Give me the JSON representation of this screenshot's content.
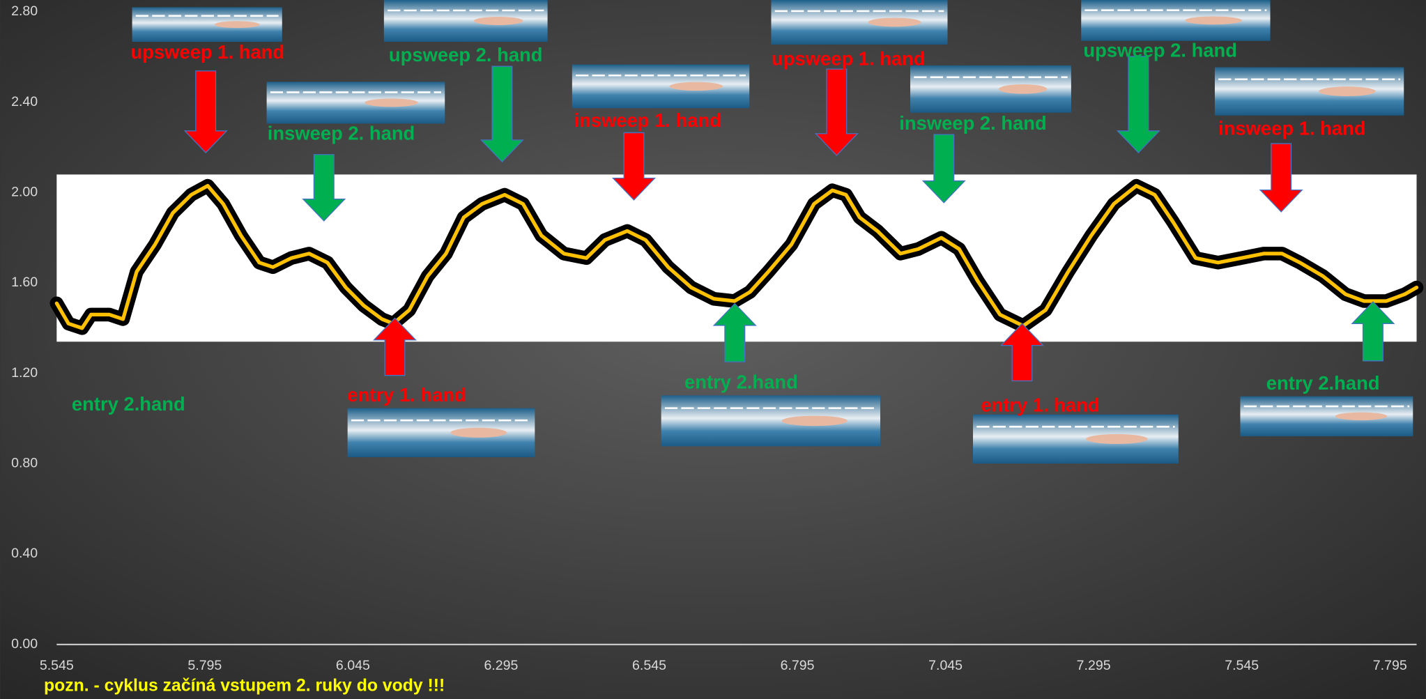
{
  "chart_data": {
    "type": "line",
    "x": [
      5.545,
      5.565,
      5.588,
      5.603,
      5.634,
      5.657,
      5.68,
      5.711,
      5.741,
      5.772,
      5.8,
      5.826,
      5.856,
      5.887,
      5.91,
      5.941,
      5.971,
      6.002,
      6.033,
      6.063,
      6.094,
      6.113,
      6.14,
      6.171,
      6.202,
      6.232,
      6.263,
      6.301,
      6.332,
      6.363,
      6.401,
      6.439,
      6.47,
      6.508,
      6.539,
      6.577,
      6.616,
      6.654,
      6.689,
      6.715,
      6.746,
      6.785,
      6.823,
      6.854,
      6.877,
      6.9,
      6.93,
      6.969,
      6.999,
      7.038,
      7.068,
      7.099,
      7.137,
      7.176,
      7.214,
      7.252,
      7.291,
      7.329,
      7.367,
      7.398,
      7.429,
      7.467,
      7.505,
      7.544,
      7.582,
      7.613,
      7.643,
      7.682,
      7.72,
      7.751,
      7.789,
      7.82,
      7.84
    ],
    "series": [
      {
        "color": "#ffc000",
        "outline_color": "#000000",
        "values": [
          1.51,
          1.42,
          1.4,
          1.46,
          1.46,
          1.44,
          1.65,
          1.77,
          1.91,
          1.99,
          2.03,
          1.95,
          1.81,
          1.69,
          1.67,
          1.71,
          1.73,
          1.69,
          1.58,
          1.5,
          1.44,
          1.42,
          1.48,
          1.63,
          1.73,
          1.89,
          1.95,
          1.99,
          1.95,
          1.81,
          1.73,
          1.71,
          1.79,
          1.83,
          1.79,
          1.67,
          1.58,
          1.53,
          1.52,
          1.56,
          1.65,
          1.77,
          1.95,
          2.01,
          1.99,
          1.89,
          1.83,
          1.73,
          1.75,
          1.8,
          1.75,
          1.61,
          1.46,
          1.41,
          1.48,
          1.65,
          1.81,
          1.95,
          2.03,
          1.99,
          1.87,
          1.71,
          1.69,
          1.71,
          1.73,
          1.73,
          1.69,
          1.63,
          1.55,
          1.52,
          1.52,
          1.55,
          1.58
        ]
      }
    ],
    "xlim": [
      5.545,
      7.84
    ],
    "xticks": [
      5.545,
      5.795,
      6.045,
      6.295,
      6.545,
      6.795,
      7.045,
      7.295,
      7.545,
      7.795
    ],
    "ylim": [
      0,
      2.8
    ],
    "yticks": [
      {
        "value": 0,
        "label": "0.00"
      },
      {
        "value": 0.4,
        "label": "0.40"
      },
      {
        "value": 0.8,
        "label": "0.80"
      },
      {
        "value": 1.2,
        "label": "1.20"
      },
      {
        "value": 1.6,
        "label": "1.60"
      },
      {
        "value": 2,
        "label": "2.00"
      },
      {
        "value": 2.4,
        "label": "2.40"
      },
      {
        "value": 2.8,
        "label": "2.80"
      }
    ],
    "band": [
      1.34,
      2.08
    ],
    "annotations": [
      {
        "text": "upsweep 1. hand",
        "color": "#ff0000"
      },
      {
        "text": "insweep 2. hand",
        "color": "#00b050"
      },
      {
        "text": "upsweep 2. hand",
        "color": "#00b050"
      },
      {
        "text": "insweep 1. hand",
        "color": "#ff0000"
      },
      {
        "text": "upsweep 1. hand",
        "color": "#ff0000"
      },
      {
        "text": "insweep 2. hand",
        "color": "#00b050"
      },
      {
        "text": "upsweep 2. hand",
        "color": "#00b050"
      },
      {
        "text": "insweep 1. hand",
        "color": "#ff0000"
      },
      {
        "text": "entry 2.hand",
        "color": "#00b050"
      },
      {
        "text": "entry 1. hand",
        "color": "#ff0000"
      },
      {
        "text": "entry 2.hand",
        "color": "#00b050"
      },
      {
        "text": "entry 1. hand",
        "color": "#ff0000"
      },
      {
        "text": "entry 2.hand",
        "color": "#00b050"
      }
    ],
    "footnote": "pozn. - cyklus začíná vstupem 2. ruky do vody !!!"
  }
}
